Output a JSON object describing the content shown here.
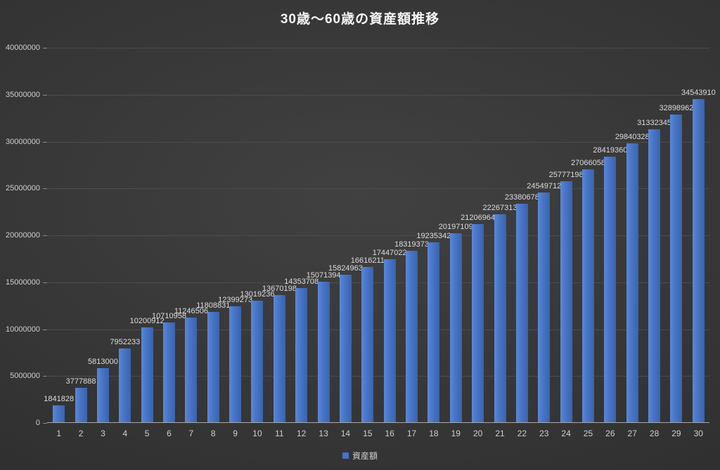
{
  "chart_data": {
    "type": "bar",
    "title": "30歳〜60歳の資産額推移",
    "categories": [
      "1",
      "2",
      "3",
      "4",
      "5",
      "6",
      "7",
      "8",
      "9",
      "10",
      "11",
      "12",
      "13",
      "14",
      "15",
      "16",
      "17",
      "18",
      "19",
      "20",
      "21",
      "22",
      "23",
      "24",
      "25",
      "26",
      "27",
      "28",
      "29",
      "30"
    ],
    "values": [
      1841828,
      3777888,
      5813000,
      7952233,
      10200912,
      10710958,
      11246506,
      11808831,
      12399273,
      13019236,
      13670198,
      14353708,
      15071394,
      15824963,
      16616211,
      17447022,
      18319373,
      19235342,
      20197109,
      21206964,
      22267313,
      23380678,
      24549712,
      25777198,
      27066058,
      28419360,
      29840328,
      31332345,
      32898962,
      34543910
    ],
    "series_name": "資産額",
    "xlabel": "",
    "ylabel": "",
    "ylim": [
      0,
      40000000
    ],
    "y_ticks": [
      0,
      5000000,
      10000000,
      15000000,
      20000000,
      25000000,
      30000000,
      35000000,
      40000000
    ],
    "grid": true,
    "data_labels": true,
    "legend_position": "bottom",
    "bar_color": "#4472c4",
    "background_color": "#333333",
    "text_color": "#cfcfcf"
  }
}
